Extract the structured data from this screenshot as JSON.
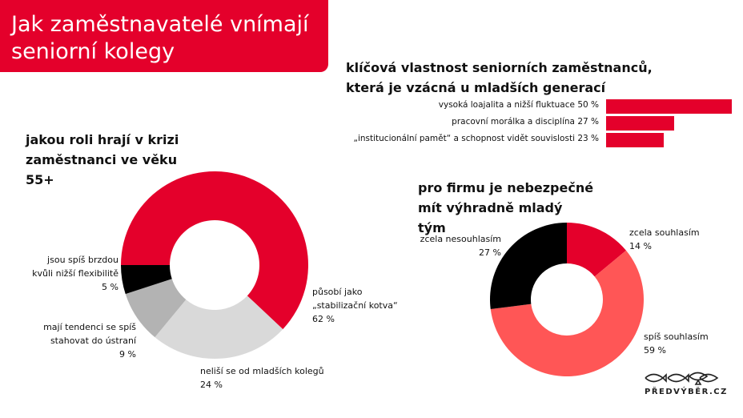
{
  "title": "Jak zaměstnavatelé vnímají seniorní kolegy",
  "logo": "PŘEDVÝBĚR.CZ",
  "colors": {
    "red": "#e4002b",
    "salmon": "#ff5656",
    "light_gray": "#d9d9d9",
    "gray": "#b3b3b3",
    "black": "#000000"
  },
  "chart_data": [
    {
      "type": "bar",
      "orientation": "horizontal",
      "title": "klíčová vlastnost seniorních zaměstnanců, která je vzácná u mladších generací",
      "categories": [
        "vysoká loajalita a nižší fluktuace",
        "pracovní morálka a disciplína",
        "„institucionální pamět“ a schopnost vidět souvislosti"
      ],
      "values": [
        50,
        27,
        23
      ],
      "labels": [
        "vysoká loajalita a nižší fluktuace 50 %",
        "pracovní morálka a disciplína 27 %",
        "„institucionální pamět“ a schopnost vidět souvislosti 23 %"
      ]
    },
    {
      "type": "pie",
      "donut": true,
      "title": "jakou roli hrají v krizi zaměstnanci ve věku 55+",
      "slices": [
        {
          "label": "působí jako „stabilizační kotva“",
          "value": 62,
          "value_label": "62 %",
          "color": "#e4002b"
        },
        {
          "label": "neliší se od mladších kolegů",
          "value": 24,
          "value_label": "24 %",
          "color": "#d9d9d9"
        },
        {
          "label": "mají tendenci se spíš stahovat do ústraní",
          "value": 9,
          "value_label": "9 %",
          "color": "#b3b3b3"
        },
        {
          "label": "jsou spíš brzdou kvůli nižší flexibilitě",
          "value": 5,
          "value_label": "5 %",
          "color": "#000000"
        }
      ]
    },
    {
      "type": "pie",
      "donut": true,
      "title": "pro firmu je nebezpečné mít výhradně mladý tým",
      "slices": [
        {
          "label": "zcela souhlasím",
          "value": 14,
          "value_label": "14 %",
          "color": "#e4002b"
        },
        {
          "label": "spíš souhlasím",
          "value": 59,
          "value_label": "59 %",
          "color": "#ff5656"
        },
        {
          "label": "zcela nesouhlasím",
          "value": 27,
          "value_label": "27 %",
          "color": "#000000"
        }
      ]
    }
  ]
}
